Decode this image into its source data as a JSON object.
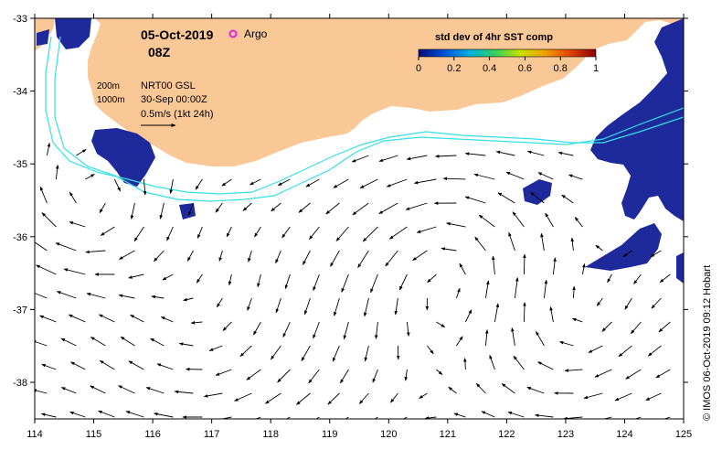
{
  "title": {
    "date": "05-Oct-2019",
    "time": "08Z",
    "argo_label": "Argo"
  },
  "colorbar": {
    "label": "std dev of 4hr SST comp",
    "ticks": [
      "0",
      "0.2",
      "0.4",
      "0.6",
      "0.8",
      "1"
    ],
    "colors": [
      "#0a0a78",
      "#0050d8",
      "#00b0e0",
      "#30d060",
      "#c8e000",
      "#f0a000",
      "#e04000",
      "#8c0000"
    ]
  },
  "info": {
    "contour_200": "200m",
    "contour_1000": "1000m",
    "source": "NRT00 GSL",
    "date_ref": "30-Sep 00:00Z",
    "scale": "0.5m/s (1kt 24h)"
  },
  "axes": {
    "x_ticks": [
      "114",
      "115",
      "116",
      "117",
      "118",
      "119",
      "120",
      "121",
      "122",
      "123",
      "124",
      "125"
    ],
    "y_ticks": [
      "-33",
      "-34",
      "-35",
      "-36",
      "-37",
      "-38"
    ]
  },
  "credit": "© IMOS 06-Oct-2019 09:12 Hobart",
  "style": {
    "land": "#fac896",
    "contour": "#33e0e8",
    "argo": "#e020e0",
    "sst_pixel": "#1e2a9c"
  }
}
